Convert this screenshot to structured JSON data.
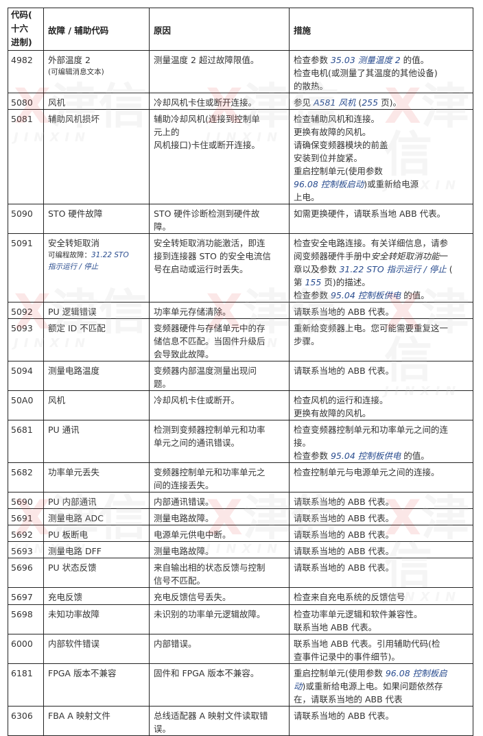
{
  "watermark": {
    "mark": "X",
    "name": "津信",
    "latin": "JINXIN"
  },
  "headers": [
    "代码(十六进制)",
    "故障 / 辅助代码",
    "原因",
    "措施"
  ],
  "header_code_lines": [
    "代码(",
    "十六",
    "进制)"
  ],
  "rows": [
    {
      "code": "4982",
      "fault": [
        [
          {
            "t": "外部温度 2"
          }
        ],
        [
          {
            "t": "(可编辑消息文本)",
            "small": true
          }
        ]
      ],
      "cause": [
        [
          {
            "t": "测量温度 2 超过故障限值。"
          }
        ]
      ],
      "action": [
        [
          {
            "t": "检查参数 "
          },
          {
            "t": "35.03 测量温度 2",
            "link": true
          },
          {
            "t": " 的值。"
          }
        ],
        [
          {
            "t": "检查电机(或测量了其温度的其他设备)"
          }
        ],
        [
          {
            "t": "的散热。"
          }
        ]
      ]
    },
    {
      "code": "5080",
      "fault": [
        [
          {
            "t": "风机"
          }
        ]
      ],
      "cause": [
        [
          {
            "t": "冷却风机卡住或断开连接。"
          }
        ]
      ],
      "action": [
        [
          {
            "t": "参见 "
          },
          {
            "t": "A581 风机",
            "link": true
          },
          {
            "t": " ("
          },
          {
            "t": "255",
            "link": true
          },
          {
            "t": " 页)。"
          }
        ]
      ]
    },
    {
      "code": "5081",
      "fault": [
        [
          {
            "t": "辅助风机损坏"
          }
        ]
      ],
      "cause": [
        [
          {
            "t": "辅助冷却风机(连接到控制单"
          }
        ],
        [
          {
            "t": "元上的"
          }
        ],
        [
          {
            "t": "风机接口)卡住或断开连接。"
          }
        ]
      ],
      "action": [
        [
          {
            "t": "检查辅助风机和连接。"
          }
        ],
        [
          {
            "t": "更换有故障的风机。"
          }
        ],
        [
          {
            "t": "请确保变频器模块的前盖"
          }
        ],
        [
          {
            "t": "安装到位并旋紧。"
          }
        ],
        [
          {
            "t": "重启控制单元(使用参数"
          }
        ],
        [
          {
            "t": "96.08 控制板启动",
            "link": true
          },
          {
            "t": ")或重新给电源"
          }
        ],
        [
          {
            "t": "上电。"
          }
        ]
      ]
    },
    {
      "code": "5090",
      "fault": [
        [
          {
            "t": "STO 硬件故障"
          }
        ]
      ],
      "cause": [
        [
          {
            "t": "STO 硬件诊断检测到硬件故"
          }
        ],
        [
          {
            "t": "障。"
          }
        ]
      ],
      "action": [
        [
          {
            "t": "如需更换硬件，请联系当地 ABB 代表。"
          }
        ]
      ]
    },
    {
      "code": "5091",
      "fault": [
        [
          {
            "t": "安全转矩取消"
          }
        ],
        [
          {
            "t": "可编程故障：",
            "small": true
          },
          {
            "t": "31.22 STO",
            "small": true,
            "link": true
          }
        ],
        [
          {
            "t": "指示运行 / 停止",
            "small": true,
            "link": true
          }
        ]
      ],
      "cause": [
        [
          {
            "t": "安全转矩取消功能激活，即连"
          }
        ],
        [
          {
            "t": "接到连接器 STO 的安全电流信"
          }
        ],
        [
          {
            "t": "号在启动或运行时丢失。"
          }
        ]
      ],
      "action": [
        [
          {
            "t": "检查安全电路连接。有关详细信息，请参"
          }
        ],
        [
          {
            "t": "阅变频器硬件手册中"
          },
          {
            "t": "安全转矩取消功能",
            "italic": true
          },
          {
            "t": "一"
          }
        ],
        [
          {
            "t": "章以及参数 "
          },
          {
            "t": "31.22 STO 指示运行 / 停止",
            "link": true
          },
          {
            "t": " ("
          }
        ],
        [
          {
            "t": "第 "
          },
          {
            "t": "155",
            "link": true
          },
          {
            "t": " 页)的描述。"
          }
        ],
        [
          {
            "t": "检查参数 "
          },
          {
            "t": "95.04 控制板供电",
            "link": true
          },
          {
            "t": " 的值。"
          }
        ]
      ]
    },
    {
      "code": "5092",
      "fault": [
        [
          {
            "t": "PU 逻辑错误"
          }
        ]
      ],
      "cause": [
        [
          {
            "t": "功率单元存储清除。"
          }
        ]
      ],
      "action": [
        [
          {
            "t": "请联系当地的 ABB 代表。"
          }
        ]
      ]
    },
    {
      "code": "5093",
      "fault": [
        [
          {
            "t": "额定 ID 不匹配"
          }
        ]
      ],
      "cause": [
        [
          {
            "t": "变频器硬件与存储单元中的存"
          }
        ],
        [
          {
            "t": "储信息不匹配。当固件升级后"
          }
        ],
        [
          {
            "t": "会导致此故障。"
          }
        ]
      ],
      "action": [
        [
          {
            "t": "重新给变频器上电。您可能需要重复这一"
          }
        ],
        [
          {
            "t": "步骤。"
          }
        ]
      ]
    },
    {
      "code": "5094",
      "fault": [
        [
          {
            "t": "测量电路温度"
          }
        ]
      ],
      "cause": [
        [
          {
            "t": "变频器内部温度测量出现问"
          }
        ],
        [
          {
            "t": "题。"
          }
        ]
      ],
      "action": [
        [
          {
            "t": "请联系当地的 ABB 代表。"
          }
        ]
      ]
    },
    {
      "code": "50A0",
      "fault": [
        [
          {
            "t": "风机"
          }
        ]
      ],
      "cause": [
        [
          {
            "t": "冷却风机卡住或断开。"
          }
        ]
      ],
      "action": [
        [
          {
            "t": "检查风机的运行和连接。"
          }
        ],
        [
          {
            "t": "更换有故障的风机。"
          }
        ]
      ]
    },
    {
      "code": "5681",
      "fault": [
        [
          {
            "t": "PU 通讯"
          }
        ]
      ],
      "cause": [
        [
          {
            "t": "检测到变频器控制单元和功率"
          }
        ],
        [
          {
            "t": "单元之间的通讯错误。"
          }
        ]
      ],
      "action": [
        [
          {
            "t": "检查变频器控制单元和功率单元之间的连"
          }
        ],
        [
          {
            "t": "接。"
          }
        ],
        [
          {
            "t": "检查参数 "
          },
          {
            "t": "95.04 控制板供电",
            "link": true
          },
          {
            "t": " 的值。"
          }
        ]
      ]
    },
    {
      "code": "5682",
      "fault": [
        [
          {
            "t": "功率单元丢失"
          }
        ]
      ],
      "cause": [
        [
          {
            "t": "变频器控制单元和功率单元之"
          }
        ],
        [
          {
            "t": "间的连接丢失。"
          }
        ]
      ],
      "action": [
        [
          {
            "t": "检查控制单元与电源单元之间的连接。"
          }
        ]
      ]
    },
    {
      "code": "5690",
      "fault": [
        [
          {
            "t": "PU 内部通讯"
          }
        ]
      ],
      "cause": [
        [
          {
            "t": "内部通讯错误。"
          }
        ]
      ],
      "action": [
        [
          {
            "t": "请联系当地的 ABB 代表。"
          }
        ]
      ]
    },
    {
      "code": "5691",
      "fault": [
        [
          {
            "t": "测量电路 ADC"
          }
        ]
      ],
      "cause": [
        [
          {
            "t": "测量电路故障。"
          }
        ]
      ],
      "action": [
        [
          {
            "t": "请联系当地的 ABB 代表。"
          }
        ]
      ]
    },
    {
      "code": "5692",
      "fault": [
        [
          {
            "t": "PU 板断电"
          }
        ]
      ],
      "cause": [
        [
          {
            "t": "电源单元供电中断。"
          }
        ]
      ],
      "action": [
        [
          {
            "t": "请联系当地的 ABB 代表。"
          }
        ]
      ]
    },
    {
      "code": "5693",
      "fault": [
        [
          {
            "t": "测量电路 DFF"
          }
        ]
      ],
      "cause": [
        [
          {
            "t": "测量电路故障。"
          }
        ]
      ],
      "action": [
        [
          {
            "t": "请联系当地的 ABB 代表。"
          }
        ]
      ]
    },
    {
      "code": "5696",
      "fault": [
        [
          {
            "t": "PU 状态反馈"
          }
        ]
      ],
      "cause": [
        [
          {
            "t": "来自输出相的状态反馈与控制"
          }
        ],
        [
          {
            "t": "信号不匹配。"
          }
        ]
      ],
      "action": [
        [
          {
            "t": "请联系当地的 ABB 代表。"
          }
        ]
      ]
    },
    {
      "code": "5697",
      "fault": [
        [
          {
            "t": "充电反馈"
          }
        ]
      ],
      "cause": [
        [
          {
            "t": "充电反馈信号丢失。"
          }
        ]
      ],
      "action": [
        [
          {
            "t": "检查来自充电系统的反馈信号"
          }
        ]
      ]
    },
    {
      "code": "5698",
      "fault": [
        [
          {
            "t": "未知功率故障"
          }
        ]
      ],
      "cause": [
        [
          {
            "t": "未识别的功率单元逻辑故障。"
          }
        ]
      ],
      "action": [
        [
          {
            "t": "检查功率单元逻辑和软件兼容性。"
          }
        ],
        [
          {
            "t": "联系当地 ABB 代表。"
          }
        ]
      ]
    },
    {
      "code": "6000",
      "fault": [
        [
          {
            "t": "内部软件错误"
          }
        ]
      ],
      "cause": [
        [
          {
            "t": "内部错误。"
          }
        ]
      ],
      "action": [
        [
          {
            "t": "联系当地 ABB 代表。引用辅助代码(检"
          }
        ],
        [
          {
            "t": "查事件记录中的事件细节)。"
          }
        ]
      ]
    },
    {
      "code": "6181",
      "fault": [
        [
          {
            "t": "FPGA 版本不兼容"
          }
        ]
      ],
      "cause": [
        [
          {
            "t": "固件和 FPGA 版本不兼容。"
          }
        ]
      ],
      "action": [
        [
          {
            "t": "重启控制单元(使用参数 "
          },
          {
            "t": "96.08 控制板启",
            "link": true
          }
        ],
        [
          {
            "t": "动",
            "link": true
          },
          {
            "t": ")或重新给电源上电。如果问题依然存"
          }
        ],
        [
          {
            "t": "在，请联系当地的 ABB 代表"
          }
        ]
      ]
    },
    {
      "code": "6306",
      "fault": [
        [
          {
            "t": "FBA A 映射文件"
          }
        ]
      ],
      "cause": [
        [
          {
            "t": "总线适配器 A 映射文件读取错"
          }
        ],
        [
          {
            "t": "误。"
          }
        ]
      ],
      "action": [
        [
          {
            "t": "请联系当地的 ABB 代表。"
          }
        ]
      ]
    }
  ],
  "colors": {
    "link": "#2a4d8f",
    "border": "#222222",
    "text": "#333333"
  }
}
